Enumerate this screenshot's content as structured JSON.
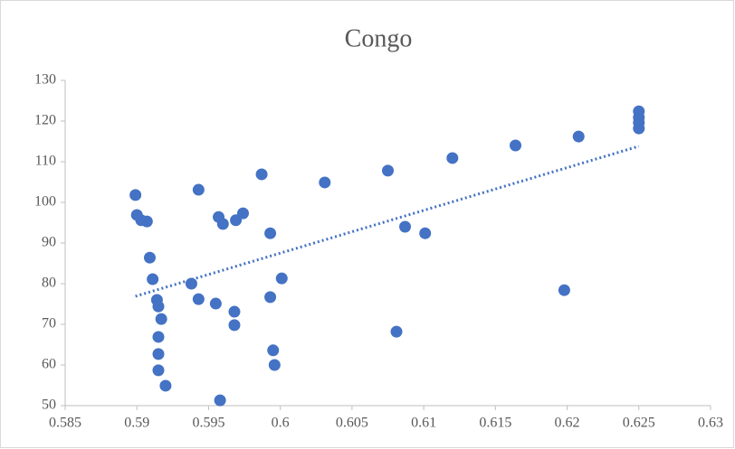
{
  "chart_data": {
    "type": "scatter",
    "title": "Congo",
    "series": [
      {
        "color": "#4472c4",
        "x": [
          0.5899,
          0.59,
          0.5903,
          0.5907,
          0.5909,
          0.5911,
          0.5914,
          0.5915,
          0.5917,
          0.5915,
          0.5915,
          0.5915,
          0.592,
          0.5938,
          0.5943,
          0.5943,
          0.5955,
          0.5957,
          0.596,
          0.5958,
          0.5969,
          0.5974,
          0.5968,
          0.5968,
          0.5987,
          0.5993,
          0.5993,
          0.5995,
          0.5996,
          0.6001,
          0.6031,
          0.6075,
          0.6081,
          0.6087,
          0.6101,
          0.612,
          0.6164,
          0.6198,
          0.6208,
          0.625,
          0.625,
          0.625,
          0.625
        ],
        "values": [
          101.8,
          96.9,
          95.6,
          95.3,
          86.4,
          81.1,
          76,
          74.4,
          71.3,
          66.9,
          62.7,
          58.7,
          54.9,
          80,
          76.2,
          103.1,
          75.1,
          96.4,
          94.7,
          51.3,
          95.6,
          97.3,
          73.1,
          69.8,
          106.9,
          92.4,
          76.7,
          63.6,
          60,
          81.3,
          104.9,
          107.8,
          68.2,
          94,
          92.4,
          110.9,
          114,
          78.4,
          116.2,
          122.4,
          120.9,
          119.6,
          118.2
        ]
      }
    ],
    "trendline": {
      "color": "#4472c4",
      "x": [
        0.5899,
        0.625
      ],
      "values": [
        76.9,
        113.8
      ]
    },
    "xlim": [
      0.585,
      0.63
    ],
    "xticks": [
      0.585,
      0.59,
      0.595,
      0.6,
      0.605,
      0.61,
      0.615,
      0.62,
      0.625,
      0.63
    ],
    "ylim": [
      50,
      130
    ],
    "yticks": [
      50,
      60,
      70,
      80,
      90,
      100,
      110,
      120,
      130
    ]
  }
}
